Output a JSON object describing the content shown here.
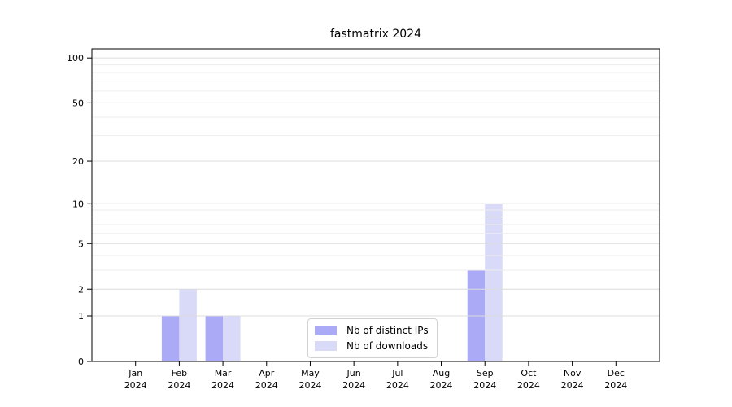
{
  "chart_data": {
    "type": "bar",
    "title": "fastmatrix 2024",
    "xlabel": "",
    "ylabel": "",
    "categories": [
      "Jan\n2024",
      "Feb\n2024",
      "Mar\n2024",
      "Apr\n2024",
      "May\n2024",
      "Jun\n2024",
      "Jul\n2024",
      "Aug\n2024",
      "Sep\n2024",
      "Oct\n2024",
      "Nov\n2024",
      "Dec\n2024"
    ],
    "series": [
      {
        "name": "Nb of distinct IPs",
        "color": "#aaaaf7",
        "values": [
          0,
          1,
          1,
          0,
          0,
          0,
          0,
          0,
          3,
          0,
          0,
          0
        ]
      },
      {
        "name": "Nb of downloads",
        "color": "#d9d9f8",
        "values": [
          0,
          2,
          1,
          0,
          0,
          0,
          0,
          0,
          10,
          0,
          0,
          0
        ]
      }
    ],
    "yscale": "log1p",
    "ylim": [
      0,
      115
    ],
    "yticks": [
      0,
      1,
      2,
      5,
      10,
      20,
      50,
      100
    ],
    "yticks_minor": [
      3,
      4,
      6,
      7,
      8,
      9,
      30,
      40,
      60,
      70,
      80,
      90
    ],
    "grid": "on",
    "legend_position": "lower center",
    "colors": {
      "axis": "#000000",
      "grid_major": "#dcdcdc",
      "grid_minor": "#ededed",
      "text": "#000000",
      "background": "#ffffff"
    }
  }
}
